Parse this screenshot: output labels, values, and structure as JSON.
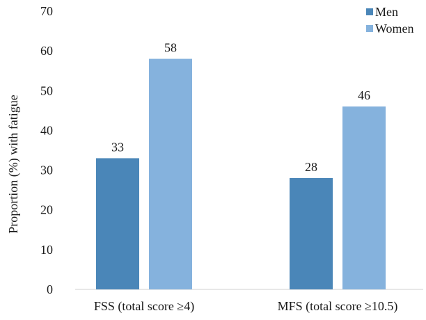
{
  "chart_data": {
    "type": "bar",
    "categories": [
      "FSS (total score ≥4)",
      "MFS (total score ≥10.5)"
    ],
    "series": [
      {
        "name": "Men",
        "values": [
          33,
          28
        ],
        "color": "#4a86b8"
      },
      {
        "name": "Women",
        "values": [
          58,
          46
        ],
        "color": "#85b2dd"
      }
    ],
    "ylabel": "Proportion (%) with fatigue",
    "xlabel": "",
    "ylim": [
      0,
      70
    ],
    "yticks": [
      0,
      10,
      20,
      30,
      40,
      50,
      60,
      70
    ],
    "grid": false,
    "legend": "top-right",
    "data_labels": true
  }
}
